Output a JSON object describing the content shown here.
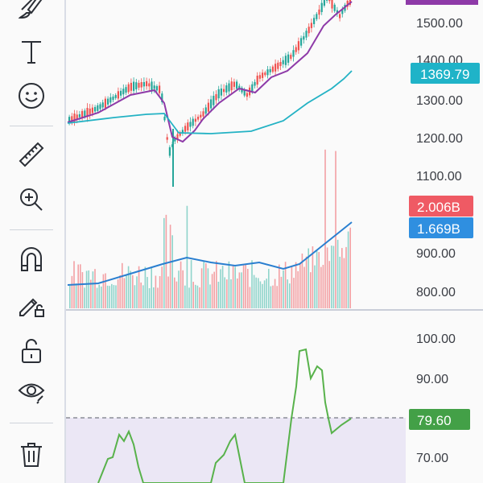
{
  "toolbar": {
    "tools": [
      {
        "name": "brush-icon",
        "label": "Brush"
      },
      {
        "name": "text-icon",
        "label": "Text"
      },
      {
        "name": "emoji-icon",
        "label": "Emoji"
      },
      {
        "name": "ruler-icon",
        "label": "Measure"
      },
      {
        "name": "zoom-in-icon",
        "label": "Zoom In"
      },
      {
        "name": "magnet-icon",
        "label": "Magnet"
      },
      {
        "name": "lock-drawing-icon",
        "label": "Lock drawings"
      },
      {
        "name": "unlock-icon",
        "label": "Unlock"
      },
      {
        "name": "eye-icon",
        "label": "Hide"
      },
      {
        "name": "trash-icon",
        "label": "Remove"
      }
    ]
  },
  "price_pane": {
    "axis_labels": [
      "1500.00",
      "1400.00",
      "1300.00",
      "1200.00",
      "1100.00"
    ],
    "tags": {
      "upper_band": {
        "text": "1369.79",
        "color": "#1fb3c8"
      }
    },
    "colors": {
      "ma_purple": "#8e3aa8",
      "ma_teal": "#23b2c4",
      "up": "#26a69a",
      "down": "#ef5350"
    }
  },
  "volume_pane": {
    "axis_labels": [
      "900.00",
      "800.00"
    ],
    "tags": {
      "volume": {
        "text": "2.006B",
        "color": "#ef5a64"
      },
      "volume_ma": {
        "text": "1.669B",
        "color": "#2f8fe0"
      }
    },
    "colors": {
      "ma_blue": "#2a7fd0"
    }
  },
  "indicator_pane": {
    "axis_labels": [
      "100.00",
      "90.00",
      "70.00"
    ],
    "tags": {
      "value": {
        "text": "79.60",
        "color": "#43a047"
      }
    },
    "colors": {
      "line_green": "#58b24b",
      "zone_fill": "#ebe7f5"
    }
  }
}
